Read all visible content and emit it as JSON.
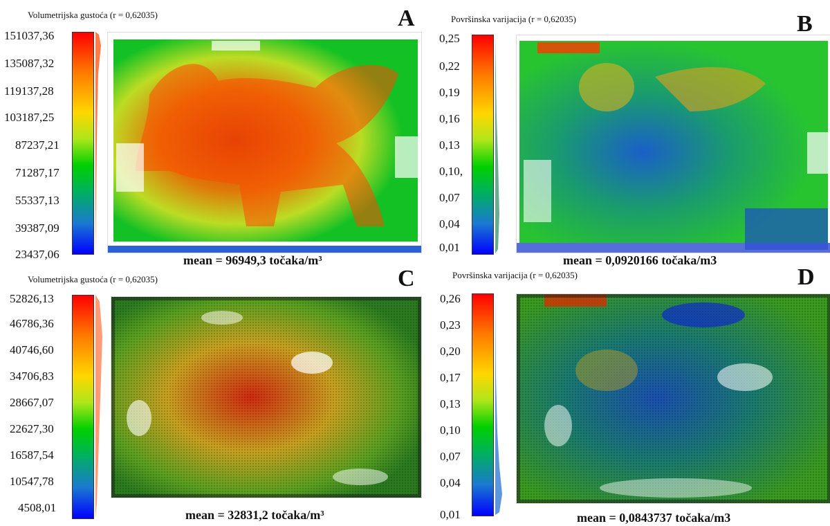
{
  "panels": {
    "A": {
      "letter": "A",
      "title": "Volumetrijska  gustoća (r = 0,62035)",
      "ticks": [
        "151037,36",
        "135087,32",
        "119137,28",
        "103187,25",
        "87237,21",
        "71287,17",
        "55337,13",
        "39387,09",
        "23437,06"
      ],
      "mean": "mean = 96949,3 točaka/m³",
      "colormap": "density-lion-rendered"
    },
    "B": {
      "letter": "B",
      "title": "Površinska varijacija  (r = 0,62035)",
      "ticks": [
        "0,25",
        "0,22",
        "0,19",
        "0,16",
        "0,13",
        "0,10,",
        "0,07",
        "0,04",
        "0,01"
      ],
      "mean": "mean = 0,0920166 točaka/m3",
      "colormap": "variation-lion-rendered"
    },
    "C": {
      "letter": "C",
      "title": "Volumetrijska  gustoća (r = 0,62035)",
      "ticks": [
        "52826,13",
        "46786,36",
        "40746,60",
        "34706,83",
        "28667,07",
        "22627,30",
        "16587,54",
        "10547,78",
        "4508,01"
      ],
      "mean": "mean = 32831,2 točaka/m³",
      "colormap": "density-lion-pointcloud"
    },
    "D": {
      "letter": "D",
      "title": "Površinska varijacija  (r = 0,62035)",
      "ticks": [
        "0,26",
        "0,23",
        "0,20",
        "0,17",
        "0,13",
        "0,10",
        "0,07",
        "0,04",
        "0,01"
      ],
      "mean": "mean = 0,0843737 točaka/m3",
      "colormap": "variation-lion-pointcloud"
    }
  },
  "colors": {
    "high": "#ff0000",
    "mid": "#00d000",
    "low": "#0000ff"
  }
}
